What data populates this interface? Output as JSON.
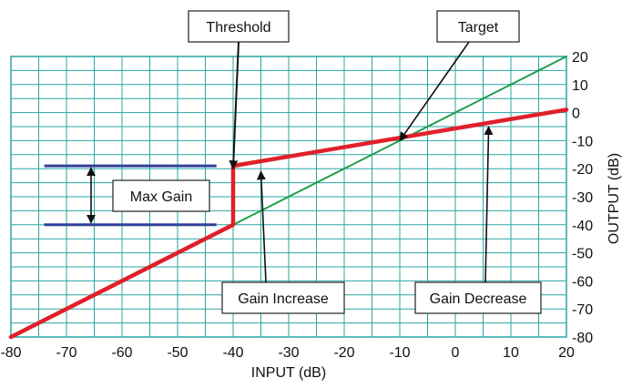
{
  "chart_data": {
    "type": "line",
    "xlabel": "INPUT (dB)",
    "ylabel": "OUTPUT (dB)",
    "xlim": [
      -80,
      20
    ],
    "ylim": [
      -80,
      20
    ],
    "xticks": [
      -80,
      -70,
      -60,
      -50,
      -40,
      -30,
      -20,
      -10,
      0,
      10,
      20
    ],
    "yticks": [
      20,
      10,
      0,
      -10,
      -20,
      -30,
      -40,
      -50,
      -60,
      -70,
      -80
    ],
    "grid": true,
    "series": [
      {
        "color": "#1a9e4a",
        "x": [
          -80,
          20
        ],
        "y": [
          -80,
          20
        ]
      },
      {
        "color": "#e0202a",
        "x": [
          -80,
          -40,
          -40,
          20
        ],
        "y": [
          -80,
          -40,
          -19,
          1
        ]
      }
    ],
    "max_gain_lines": {
      "color": "#2d3f9a",
      "x": [
        -74,
        -43
      ],
      "y": [
        -19,
        -40
      ]
    },
    "annotations": {
      "threshold": {
        "text": "Threshold",
        "points_to": [
          -40,
          -20
        ]
      },
      "target": {
        "text": "Target",
        "points_to": [
          -10,
          -10
        ]
      },
      "max_gain": {
        "text": "Max Gain"
      },
      "gain_increase": {
        "text": "Gain Increase",
        "points_to": [
          -35,
          -21
        ]
      },
      "gain_decrease": {
        "text": "Gain Decrease",
        "points_to": [
          6,
          -5
        ]
      }
    },
    "colors": {
      "plot_background": "#ffffff",
      "grid": "#2aa5a5",
      "frame": "#2aa5a5"
    }
  }
}
